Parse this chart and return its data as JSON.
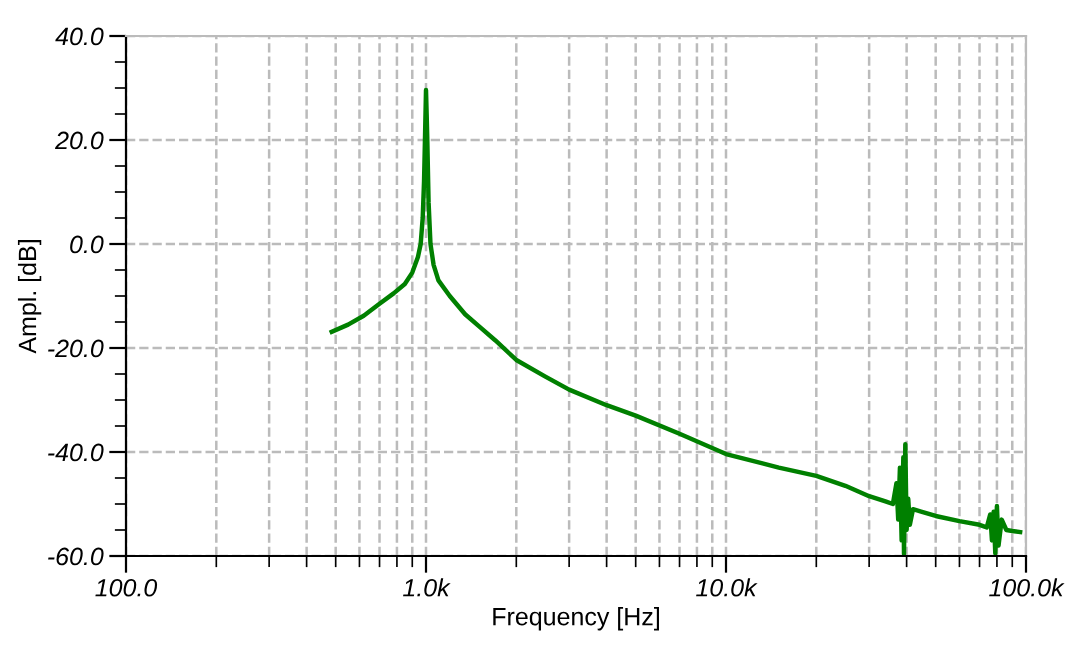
{
  "chart_data": {
    "type": "line",
    "xlabel": "Frequency [Hz]",
    "ylabel": "Ampl. [dB]",
    "log": "x",
    "grid": true,
    "marker": "none",
    "line_style": "solid",
    "xlim": [
      100,
      100000
    ],
    "ylim": [
      -60,
      40
    ],
    "xticks": [
      {
        "value": 100,
        "label": "100.0"
      },
      {
        "value": 1000,
        "label": "1.0k"
      },
      {
        "value": 10000,
        "label": "10.0k"
      },
      {
        "value": 100000,
        "label": "100.0k"
      }
    ],
    "yticks": [
      {
        "value": -60,
        "label": "-60.0"
      },
      {
        "value": -40,
        "label": "-40.0"
      },
      {
        "value": -20,
        "label": "-20.0"
      },
      {
        "value": 0,
        "label": "0.0"
      },
      {
        "value": 20,
        "label": "20.0"
      },
      {
        "value": 40,
        "label": "40.0"
      }
    ],
    "series": [
      {
        "color": "#008000",
        "x": [
          485,
          550,
          620,
          700,
          780,
          850,
          900,
          940,
          960,
          975,
          985,
          992,
          1000,
          1005,
          1010,
          1020,
          1035,
          1060,
          1100,
          1200,
          1350,
          1500,
          1700,
          2000,
          2500,
          3000,
          4000,
          5000,
          7000,
          10000,
          15000,
          20000,
          25000,
          30000,
          34000,
          36000,
          37000,
          37500,
          38000,
          38500,
          39000,
          39200,
          39600,
          40000,
          40500,
          41000,
          42000,
          45000,
          50000,
          60000,
          70000,
          74000,
          76000,
          77000,
          78000,
          79000,
          80000,
          81000,
          83000,
          86000,
          90000,
          95600
        ],
        "values": [
          -16.9,
          -15.5,
          -13.8,
          -11.5,
          -9.5,
          -7.7,
          -5.5,
          -2.5,
          0,
          5,
          12,
          20,
          29.6,
          25,
          20,
          8,
          0,
          -4,
          -7,
          -10,
          -13.5,
          -15.8,
          -18.5,
          -22.3,
          -25.5,
          -28,
          -31,
          -33,
          -36.5,
          -40.4,
          -43,
          -44.6,
          -46.5,
          -48.5,
          -49.5,
          -50,
          -46,
          -53,
          -43,
          -57,
          -41,
          -59.6,
          -38.5,
          -55,
          -49,
          -54,
          -51,
          -51.5,
          -52.3,
          -53.3,
          -54,
          -54.5,
          -52,
          -57,
          -51.5,
          -59.5,
          -50.4,
          -58,
          -53,
          -55,
          -55.2,
          -55.4
        ]
      }
    ]
  }
}
